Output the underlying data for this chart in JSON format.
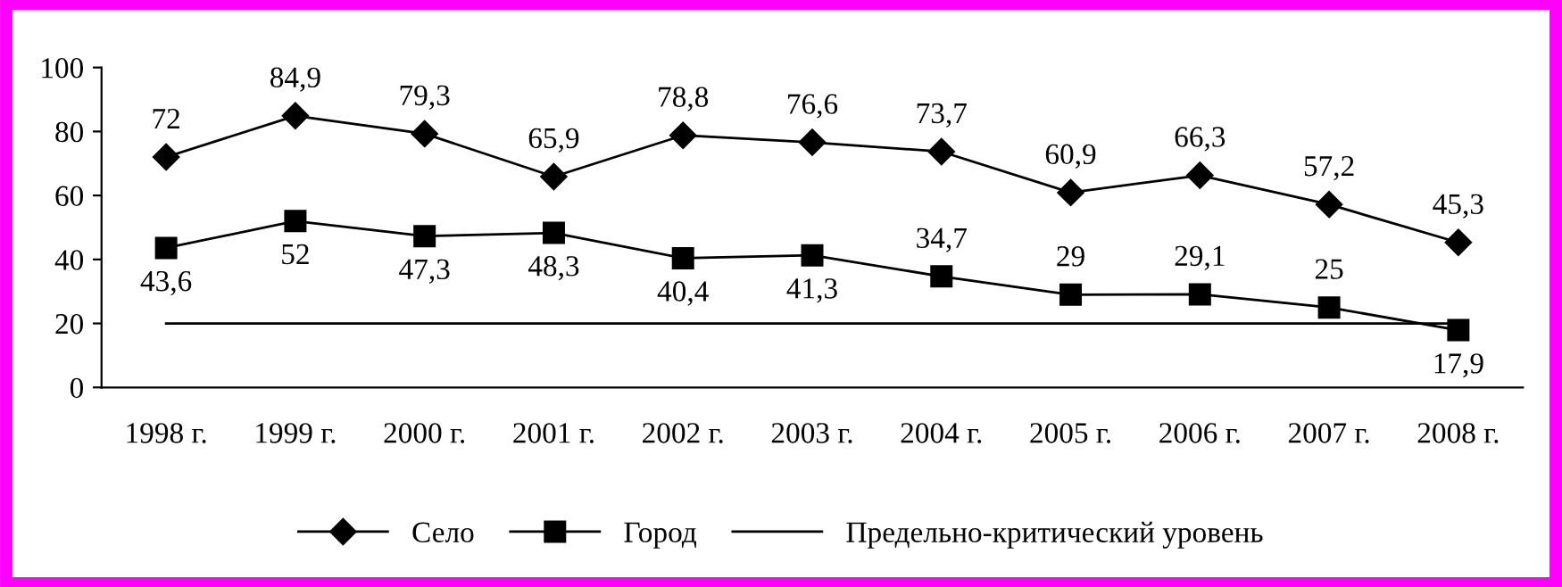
{
  "chart_data": {
    "type": "line",
    "categories": [
      "1998 г.",
      "1999 г.",
      "2000 г.",
      "2001 г.",
      "2002 г.",
      "2003 г.",
      "2004 г.",
      "2005 г.",
      "2006 г.",
      "2007 г.",
      "2008 г."
    ],
    "series": [
      {
        "name": "Село",
        "color": "#000000",
        "marker": "diamond",
        "values": [
          72,
          84.9,
          79.3,
          65.9,
          78.8,
          76.6,
          73.7,
          60.9,
          66.3,
          57.2,
          45.3
        ],
        "value_labels": [
          "72",
          "84,9",
          "79,3",
          "65,9",
          "78,8",
          "76,6",
          "73,7",
          "60,9",
          "66,3",
          "57,2",
          "45,3"
        ]
      },
      {
        "name": "Город",
        "color": "#000000",
        "marker": "square",
        "values": [
          43.6,
          52,
          47.3,
          48.3,
          40.4,
          41.3,
          34.7,
          29,
          29.1,
          25,
          17.9
        ],
        "value_labels": [
          "43,6",
          "52",
          "47,3",
          "48,3",
          "40,4",
          "41,3",
          "34,7",
          "29",
          "29,1",
          "25",
          "17,9"
        ]
      },
      {
        "name": "Предельно-критический уровень",
        "color": "#000000",
        "marker": "none",
        "values": [
          20,
          20,
          20,
          20,
          20,
          20,
          20,
          20,
          20,
          20,
          20
        ]
      }
    ],
    "ylim": [
      0,
      100
    ],
    "yticks": [
      0,
      20,
      40,
      60,
      80,
      100
    ],
    "grid": false,
    "legend": "bottom",
    "line_style": "solid"
  }
}
